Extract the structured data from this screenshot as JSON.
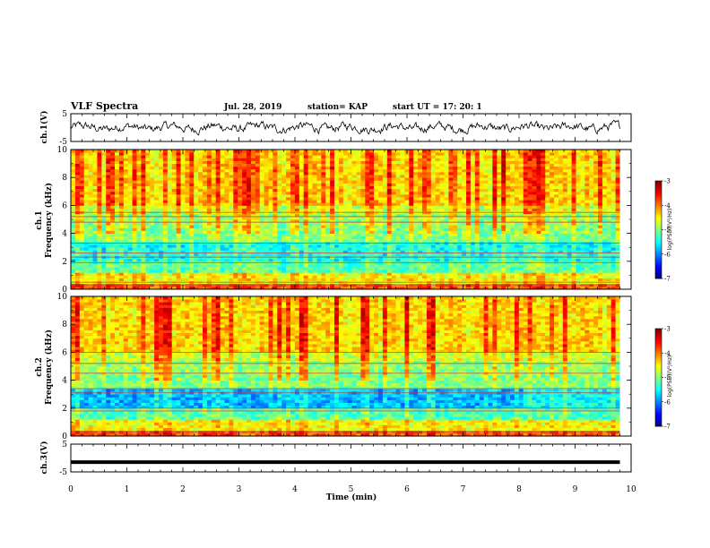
{
  "header": {
    "title": "VLF Spectra",
    "date": "Jul. 28, 2019",
    "station": "station= KAP",
    "start_ut": "start UT =   17: 20: 1"
  },
  "chart_data": [
    {
      "type": "line",
      "panel": "ch1-waveform",
      "ylabel": "ch.1(V)",
      "ylim": [
        -5,
        5
      ],
      "yticks": [
        "5",
        "-5"
      ],
      "xlim": [
        0,
        10
      ],
      "description_values": "noisy waveform roughly between -2 and 2 V over 0–9.8 min",
      "x_end": 9.8,
      "amplitude": 2.0
    },
    {
      "type": "heatmap",
      "panel": "ch1-spectrogram",
      "ylabel": "ch.1\nFrequency (kHz)",
      "ylabel_lines": [
        "ch.1",
        "Frequency (kHz)"
      ],
      "ylim": [
        0,
        10
      ],
      "yticks": [
        "0",
        "2",
        "4",
        "6",
        "8",
        "10"
      ],
      "xlim": [
        0,
        10
      ],
      "x_end": 9.8,
      "colorbar": {
        "label": "log(PSD)(V²/Hz)",
        "range": [
          -7,
          -3
        ],
        "ticks": [
          "-3",
          "-4",
          "-5",
          "-6",
          "-7"
        ]
      }
    },
    {
      "type": "heatmap",
      "panel": "ch2-spectrogram",
      "ylabel": "ch.2\nFrequency (kHz)",
      "ylabel_lines": [
        "ch.2",
        "Frequency (kHz)"
      ],
      "ylim": [
        0,
        10
      ],
      "yticks": [
        "0",
        "2",
        "4",
        "6",
        "8",
        "10"
      ],
      "xlim": [
        0,
        10
      ],
      "x_end": 9.8,
      "colorbar": {
        "label": "log(PSD)(V²/Hz)",
        "range": [
          -7,
          -3
        ],
        "ticks": [
          "-3",
          "-4",
          "-5",
          "-6",
          "-7"
        ]
      }
    },
    {
      "type": "line",
      "panel": "ch3-waveform",
      "ylabel": "ch.3(V)",
      "ylim": [
        -5,
        5
      ],
      "yticks": [
        "5",
        "-5"
      ],
      "xlim": [
        0,
        10
      ],
      "x_end": 9.8,
      "constant_value": -1.5
    }
  ],
  "xaxis": {
    "label": "Time (min)",
    "ticks": [
      "0",
      "1",
      "2",
      "3",
      "4",
      "5",
      "6",
      "7",
      "8",
      "9",
      "10"
    ]
  },
  "colors": {
    "low": "#000080",
    "mid_low": "#00ffff",
    "mid": "#00ff00",
    "mid_high": "#ffff00",
    "high": "#ff0000"
  }
}
